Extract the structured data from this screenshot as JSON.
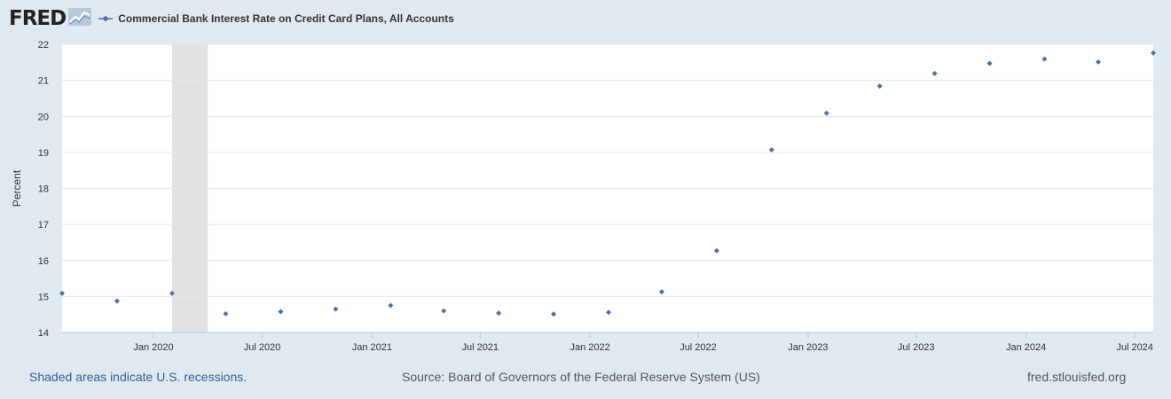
{
  "header": {
    "logo_text": "FRED",
    "series_title": "Commercial Bank Interest Rate on Credit Card Plans, All Accounts"
  },
  "footer": {
    "recession_note": "Shaded areas indicate U.S. recessions.",
    "source": "Source: Board of Governors of the Federal Reserve System (US)",
    "site": "fred.stlouisfed.org"
  },
  "colors": {
    "series": "#4572a7",
    "recession": "#e1e1e1",
    "background": "#e1e9f0",
    "plot_background": "#ffffff",
    "logo_graph": "#8aa8c4"
  },
  "chart_data": {
    "type": "scatter",
    "title": "Commercial Bank Interest Rate on Credit Card Plans, All Accounts",
    "ylabel": "Percent",
    "xlabel": "",
    "ylim": [
      14,
      22
    ],
    "yticks": [
      14,
      15,
      16,
      17,
      18,
      19,
      20,
      21,
      22
    ],
    "xlim": [
      "2019-08-01",
      "2024-08-01"
    ],
    "xticks": [
      {
        "date": "2020-01-01",
        "label": "Jan 2020"
      },
      {
        "date": "2020-07-01",
        "label": "Jul 2020"
      },
      {
        "date": "2021-01-01",
        "label": "Jan 2021"
      },
      {
        "date": "2021-07-01",
        "label": "Jul 2021"
      },
      {
        "date": "2022-01-01",
        "label": "Jan 2022"
      },
      {
        "date": "2022-07-01",
        "label": "Jul 2022"
      },
      {
        "date": "2023-01-01",
        "label": "Jan 2023"
      },
      {
        "date": "2023-07-01",
        "label": "Jul 2023"
      },
      {
        "date": "2024-01-01",
        "label": "Jan 2024"
      },
      {
        "date": "2024-07-01",
        "label": "Jul 2024"
      }
    ],
    "recessions": [
      {
        "start": "2020-02-01",
        "end": "2020-04-01"
      }
    ],
    "grid": true,
    "legend": "top-left",
    "series": [
      {
        "name": "Commercial Bank Interest Rate on Credit Card Plans, All Accounts",
        "points": [
          {
            "x": "2019-08-01",
            "y": 15.09
          },
          {
            "x": "2019-11-01",
            "y": 14.87
          },
          {
            "x": "2020-02-01",
            "y": 15.09
          },
          {
            "x": "2020-05-01",
            "y": 14.52
          },
          {
            "x": "2020-08-01",
            "y": 14.58
          },
          {
            "x": "2020-11-01",
            "y": 14.65
          },
          {
            "x": "2021-02-01",
            "y": 14.75
          },
          {
            "x": "2021-05-01",
            "y": 14.6
          },
          {
            "x": "2021-08-01",
            "y": 14.54
          },
          {
            "x": "2021-11-01",
            "y": 14.51
          },
          {
            "x": "2022-02-01",
            "y": 14.56
          },
          {
            "x": "2022-05-01",
            "y": 15.13
          },
          {
            "x": "2022-08-01",
            "y": 16.27
          },
          {
            "x": "2022-11-01",
            "y": 19.07
          },
          {
            "x": "2023-02-01",
            "y": 20.09
          },
          {
            "x": "2023-05-01",
            "y": 20.84
          },
          {
            "x": "2023-08-01",
            "y": 21.19
          },
          {
            "x": "2023-11-01",
            "y": 21.47
          },
          {
            "x": "2024-02-01",
            "y": 21.59
          },
          {
            "x": "2024-05-01",
            "y": 21.51
          },
          {
            "x": "2024-08-01",
            "y": 21.76
          }
        ]
      }
    ]
  }
}
